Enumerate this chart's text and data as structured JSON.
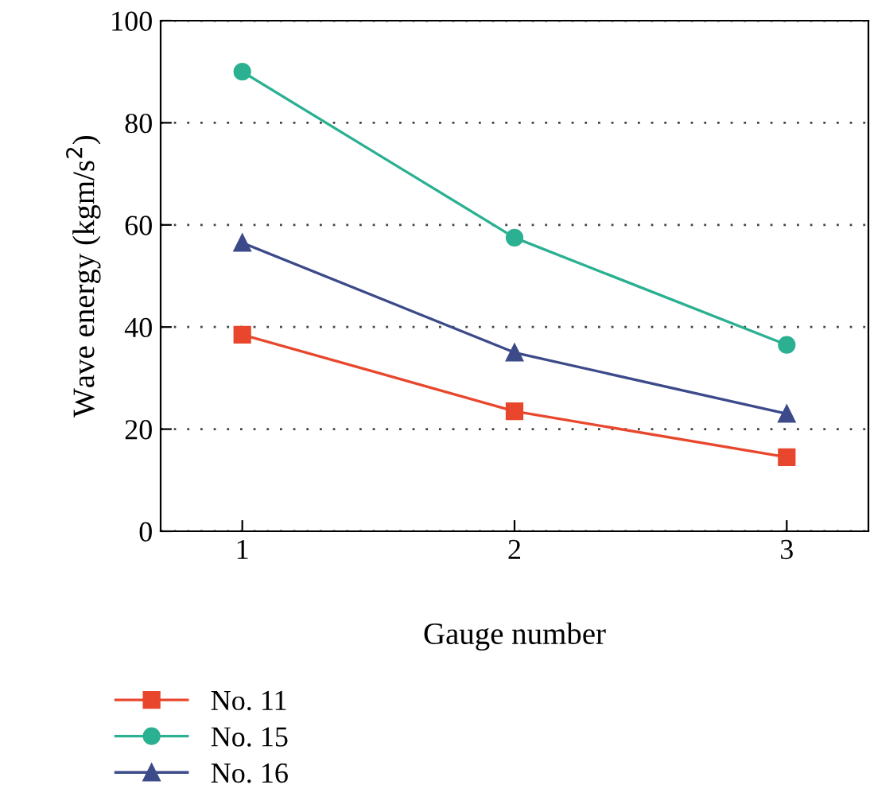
{
  "chart_data": {
    "type": "line",
    "xlabel": "Gauge number",
    "ylabel": "Wave energy (kgm/s$^{2}$)",
    "x": [
      1,
      2,
      3
    ],
    "xlim": [
      0.7,
      3.3
    ],
    "xticks": [
      1,
      2,
      3
    ],
    "ylim": [
      0,
      100
    ],
    "yticks": [
      0,
      20,
      40,
      60,
      80,
      100
    ],
    "grid": "y",
    "legend": "bottom",
    "series": [
      {
        "name": "No. 11",
        "color": "#e8472d",
        "marker": "square",
        "values": [
          38.5,
          23.5,
          14.5
        ]
      },
      {
        "name": "No. 15",
        "color": "#2bb092",
        "marker": "circle",
        "values": [
          90,
          57.5,
          36.5
        ]
      },
      {
        "name": "No. 16",
        "color": "#3d4a8a",
        "marker": "triangle",
        "values": [
          56.5,
          35,
          23
        ]
      }
    ]
  }
}
